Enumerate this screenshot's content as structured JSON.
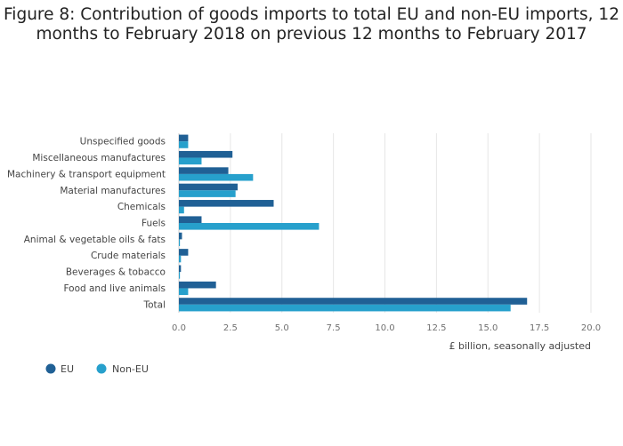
{
  "title_line1": "Figure 8: Contribution of goods imports to total EU and non-EU imports, 12",
  "title_line2": "months to February 2018 on previous 12 months to February 2017",
  "colors": {
    "eu": "#206095",
    "non_eu": "#27a0cc",
    "grid": "#e6e6e6"
  },
  "chart_data": {
    "type": "bar",
    "orientation": "horizontal",
    "title": "Figure 8: Contribution of goods imports to total EU and non-EU imports, 12 months to February 2018 on previous 12 months to February 2017",
    "categories": [
      "Unspecified goods",
      "Miscellaneous manufactures",
      "Machinery & transport equipment",
      "Material manufactures",
      "Chemicals",
      "Fuels",
      "Animal & vegetable oils & fats",
      "Crude materials",
      "Beverages & tobacco",
      "Food and live animals",
      "Total"
    ],
    "series": [
      {
        "name": "EU",
        "values": [
          0.45,
          2.6,
          2.4,
          2.85,
          4.6,
          1.1,
          0.15,
          0.45,
          0.1,
          1.8,
          16.9
        ]
      },
      {
        "name": "Non-EU",
        "values": [
          0.45,
          1.1,
          3.6,
          2.75,
          0.25,
          6.8,
          0.05,
          0.1,
          0.05,
          0.45,
          16.1
        ]
      }
    ],
    "xlabel": "£ billion, seasonally adjusted",
    "ylabel": "",
    "xlim": [
      0,
      20
    ],
    "xticks": [
      "0.0",
      "2.5",
      "5.0",
      "7.5",
      "10.0",
      "12.5",
      "15.0",
      "17.5",
      "20.0"
    ],
    "grid": true,
    "legend_position": "bottom-left"
  }
}
